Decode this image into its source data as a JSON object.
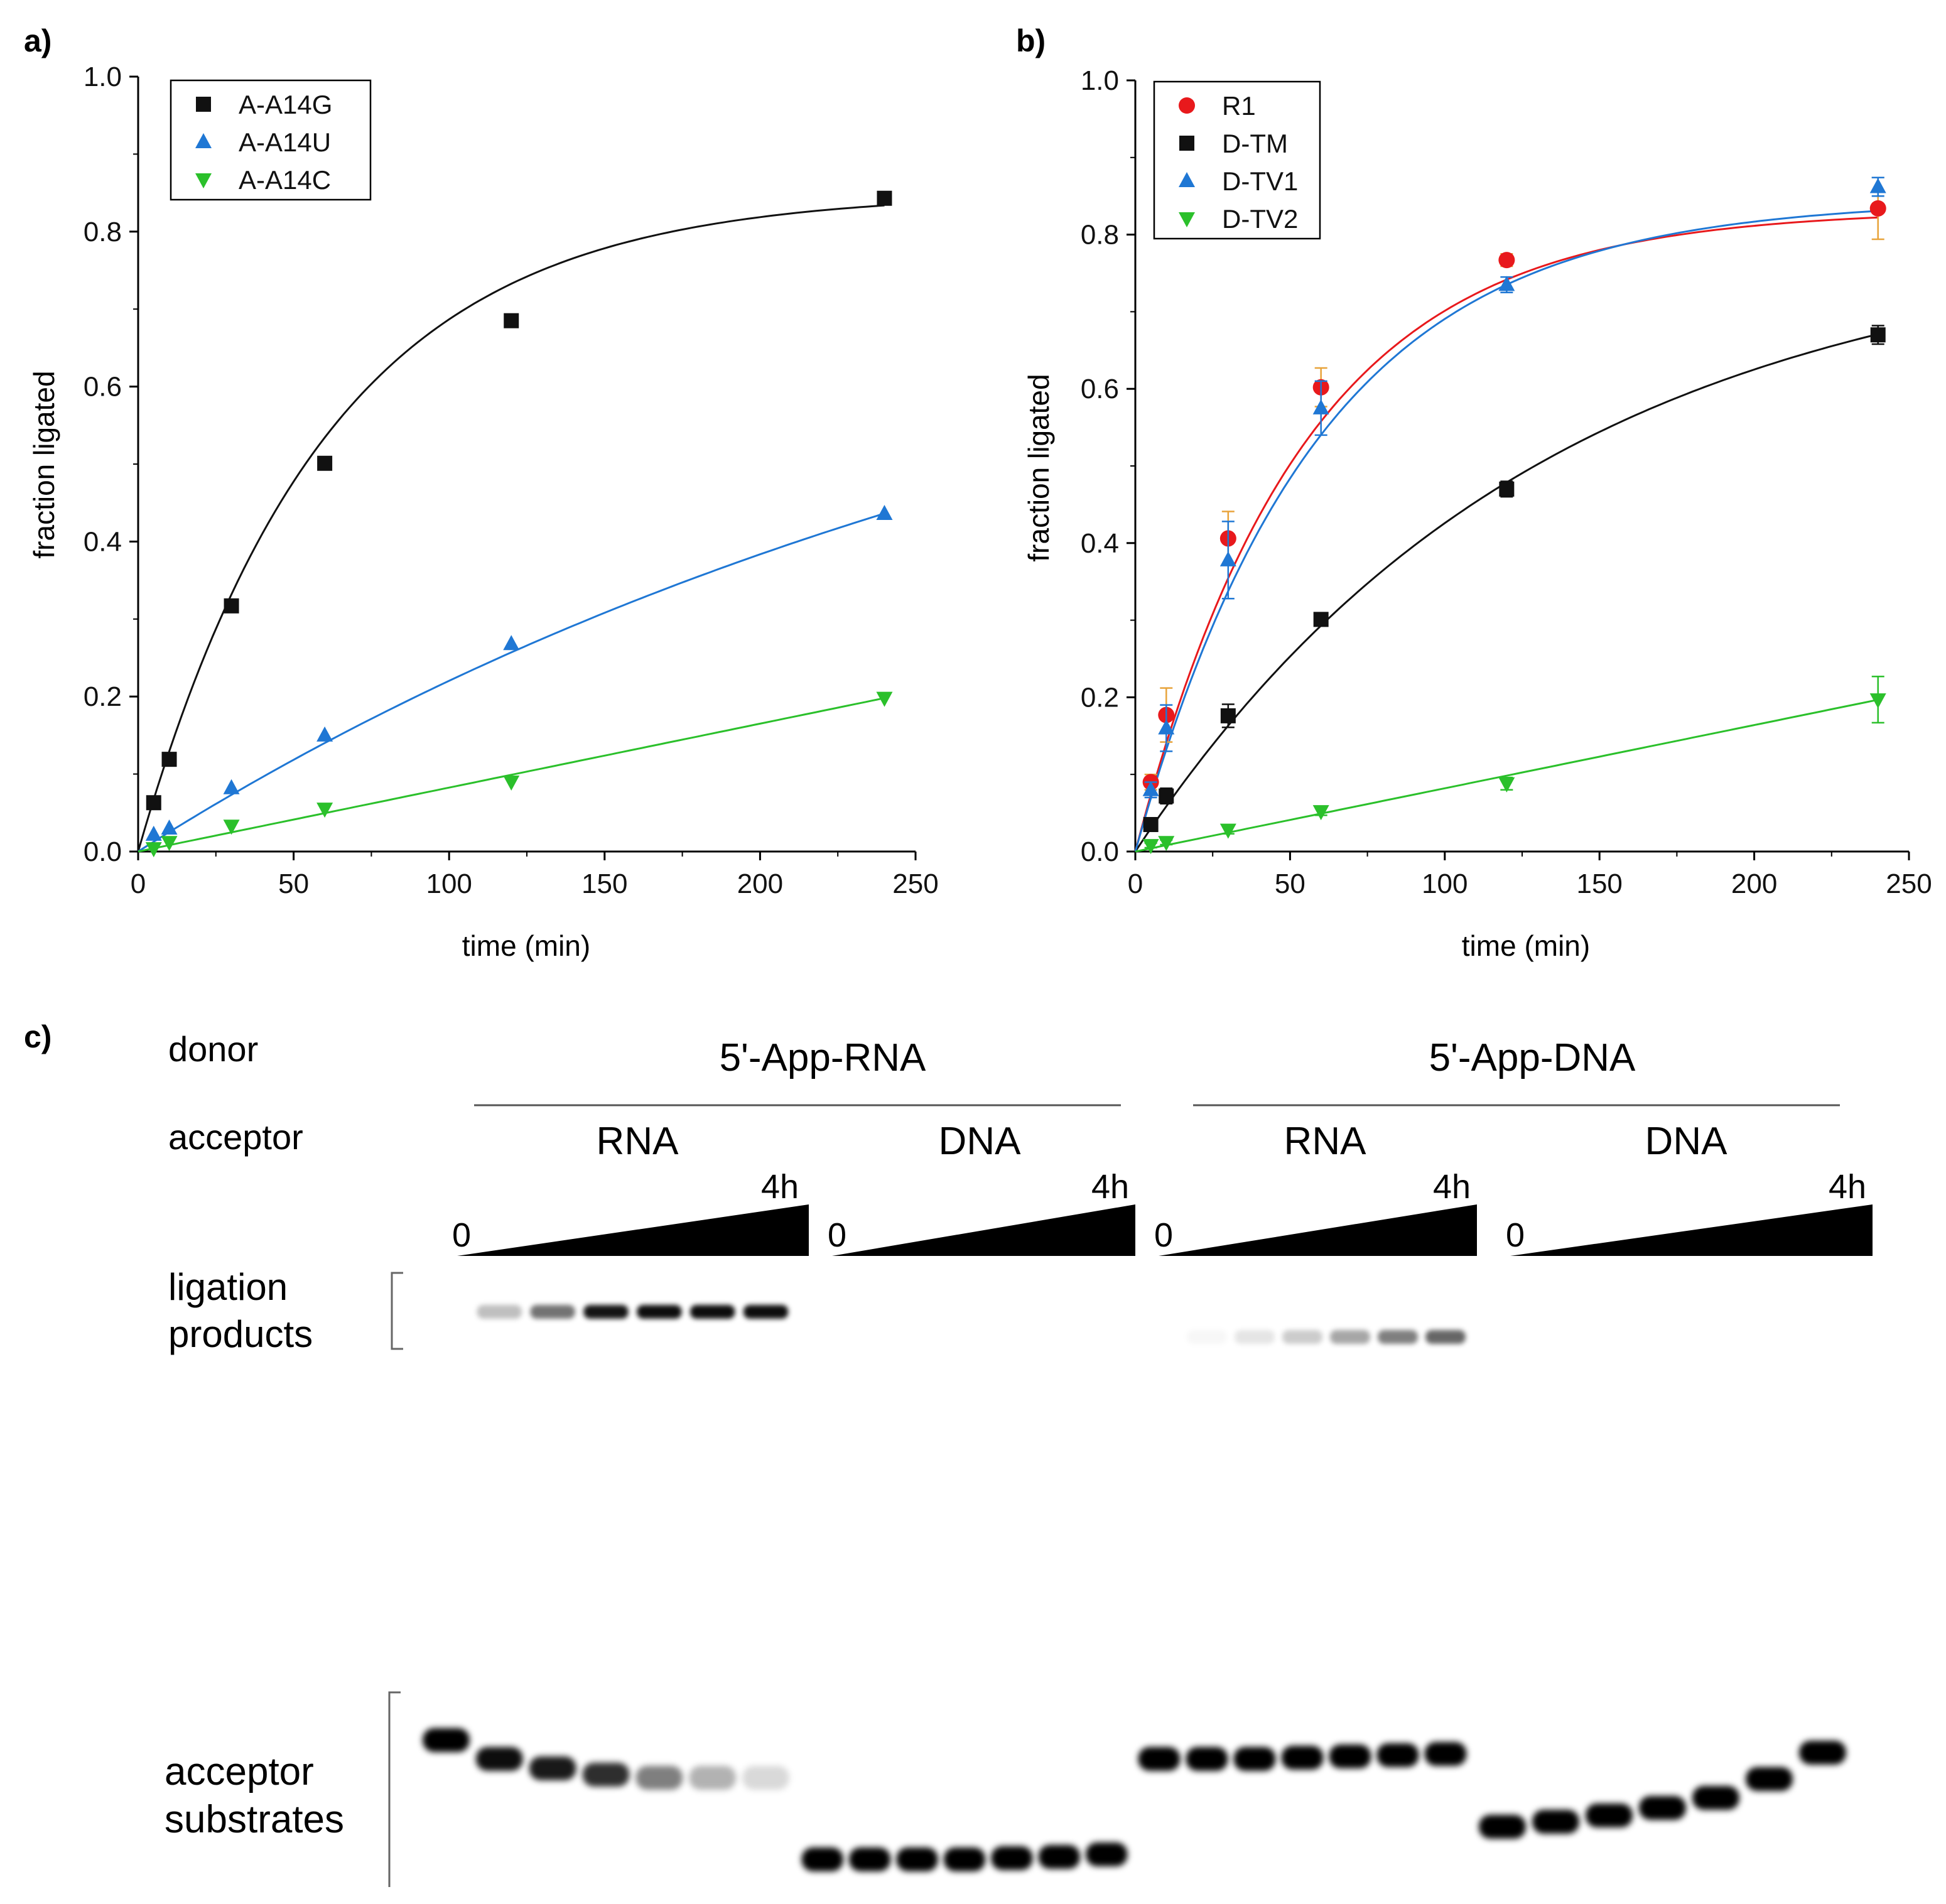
{
  "chart_data": [
    {
      "type": "scatter",
      "panel_label": "a)",
      "xlabel": "time (min)",
      "ylabel": "fraction ligated",
      "xlim": [
        0,
        250
      ],
      "ylim": [
        0,
        1.0
      ],
      "x_ticks": [
        0,
        50,
        100,
        150,
        200,
        250
      ],
      "x_tick_labels": [
        "0",
        "50",
        "100",
        "150",
        "200",
        "250"
      ],
      "y_ticks": [
        0,
        0.2,
        0.4,
        0.6,
        0.8,
        1.0
      ],
      "y_tick_labels": [
        "0.0",
        "0.2",
        "0.4",
        "0.6",
        "0.8",
        "1.0"
      ],
      "legend_position": "top-left",
      "series": [
        {
          "name": "A-A14G",
          "color": "#111111",
          "marker": "square",
          "x": [
            5,
            10,
            30,
            60,
            120,
            240
          ],
          "y": [
            0.063,
            0.119,
            0.317,
            0.501,
            0.685,
            0.843
          ],
          "fit": {
            "model": "exponential",
            "ymax": 0.85,
            "k": 0.0165
          }
        },
        {
          "name": "A-A14U",
          "color": "#1f77d4",
          "marker": "triangle-up",
          "x": [
            5,
            10,
            30,
            60,
            120,
            240
          ],
          "y": [
            0.022,
            0.03,
            0.082,
            0.15,
            0.268,
            0.436
          ],
          "fit": {
            "model": "exponential",
            "ymax": 0.85,
            "k": 0.003
          }
        },
        {
          "name": "A-A14C",
          "color": "#2bc02b",
          "marker": "triangle-down",
          "x": [
            5,
            10,
            30,
            60,
            120,
            240
          ],
          "y": [
            0.004,
            0.012,
            0.033,
            0.055,
            0.09,
            0.198
          ],
          "fit": {
            "model": "linear",
            "slope": 0.000825
          }
        }
      ]
    },
    {
      "type": "scatter",
      "panel_label": "b)",
      "xlabel": "time (min)",
      "ylabel": "fraction ligated",
      "xlim": [
        0,
        250
      ],
      "ylim": [
        0,
        1.0
      ],
      "x_ticks": [
        0,
        50,
        100,
        150,
        200,
        250
      ],
      "x_tick_labels": [
        "0",
        "50",
        "100",
        "150",
        "200",
        "250"
      ],
      "y_ticks": [
        0,
        0.2,
        0.4,
        0.6,
        0.8,
        1.0
      ],
      "y_tick_labels": [
        "0.0",
        "0.2",
        "0.4",
        "0.6",
        "0.8",
        "1.0"
      ],
      "legend_position": "top-left",
      "series": [
        {
          "name": "R1",
          "color": "#e8191c",
          "marker": "circle",
          "error_color": "#e8a33a",
          "x": [
            5,
            10,
            30,
            60,
            120,
            240
          ],
          "y": [
            0.09,
            0.177,
            0.406,
            0.602,
            0.767,
            0.834
          ],
          "err": [
            0.01,
            0.035,
            0.035,
            0.025,
            0.008,
            0.04
          ],
          "fit": {
            "model": "exponential",
            "ymax": 0.832,
            "k": 0.0185
          }
        },
        {
          "name": "D-TM",
          "color": "#111111",
          "marker": "square",
          "x": [
            5,
            10,
            30,
            60,
            120,
            240
          ],
          "y": [
            0.035,
            0.072,
            0.176,
            0.301,
            0.47,
            0.67
          ],
          "err": [
            0.005,
            0.01,
            0.015,
            0.008,
            0.01,
            0.012
          ],
          "fit": {
            "model": "exponential",
            "ymax": 0.8,
            "k": 0.0076
          }
        },
        {
          "name": "D-TV1",
          "color": "#1f77d4",
          "marker": "triangle-up",
          "x": [
            5,
            10,
            30,
            60,
            120,
            240
          ],
          "y": [
            0.08,
            0.16,
            0.378,
            0.575,
            0.735,
            0.862
          ],
          "err": [
            0.01,
            0.03,
            0.05,
            0.035,
            0.01,
            0.012
          ],
          "fit": {
            "model": "exponential",
            "ymax": 0.845,
            "k": 0.017
          }
        },
        {
          "name": "D-TV2",
          "color": "#2bc02b",
          "marker": "triangle-down",
          "x": [
            5,
            10,
            30,
            60,
            120,
            240
          ],
          "y": [
            0.008,
            0.012,
            0.028,
            0.052,
            0.088,
            0.197
          ],
          "err": [
            0.003,
            0.003,
            0.005,
            0.005,
            0.008,
            0.03
          ],
          "fit": {
            "model": "linear",
            "slope": 0.00082
          }
        }
      ]
    }
  ],
  "gel": {
    "panel_label": "c)",
    "donor_label": "donor",
    "acceptor_label": "acceptor",
    "donor_groups": [
      "5'-App-RNA",
      "5'-App-DNA"
    ],
    "acceptor_groups": [
      "RNA",
      "DNA",
      "RNA",
      "DNA"
    ],
    "time_start": "0",
    "time_end": "4h",
    "band_labels": {
      "products_line1": "ligation",
      "products_line2": "products",
      "substrates_line1": "acceptor",
      "substrates_line2": "substrates"
    },
    "lanes_per_group": 7,
    "product_band_intensity": [
      [
        0,
        0.25,
        0.55,
        0.92,
        0.95,
        0.95,
        0.95
      ],
      [
        0,
        0,
        0,
        0,
        0,
        0,
        0
      ],
      [
        0,
        0.03,
        0.1,
        0.2,
        0.35,
        0.5,
        0.6
      ],
      [
        0,
        0,
        0,
        0,
        0,
        0,
        0
      ]
    ],
    "substrate_band_intensity": [
      [
        1.0,
        0.95,
        0.9,
        0.82,
        0.5,
        0.3,
        0.15
      ],
      [
        1.0,
        1.0,
        1.0,
        1.0,
        1.0,
        1.0,
        1.0
      ],
      [
        1.0,
        1.0,
        1.0,
        1.0,
        1.0,
        1.0,
        1.0
      ],
      [
        1.0,
        1.0,
        1.0,
        1.0,
        1.0,
        1.0,
        1.0
      ]
    ]
  }
}
